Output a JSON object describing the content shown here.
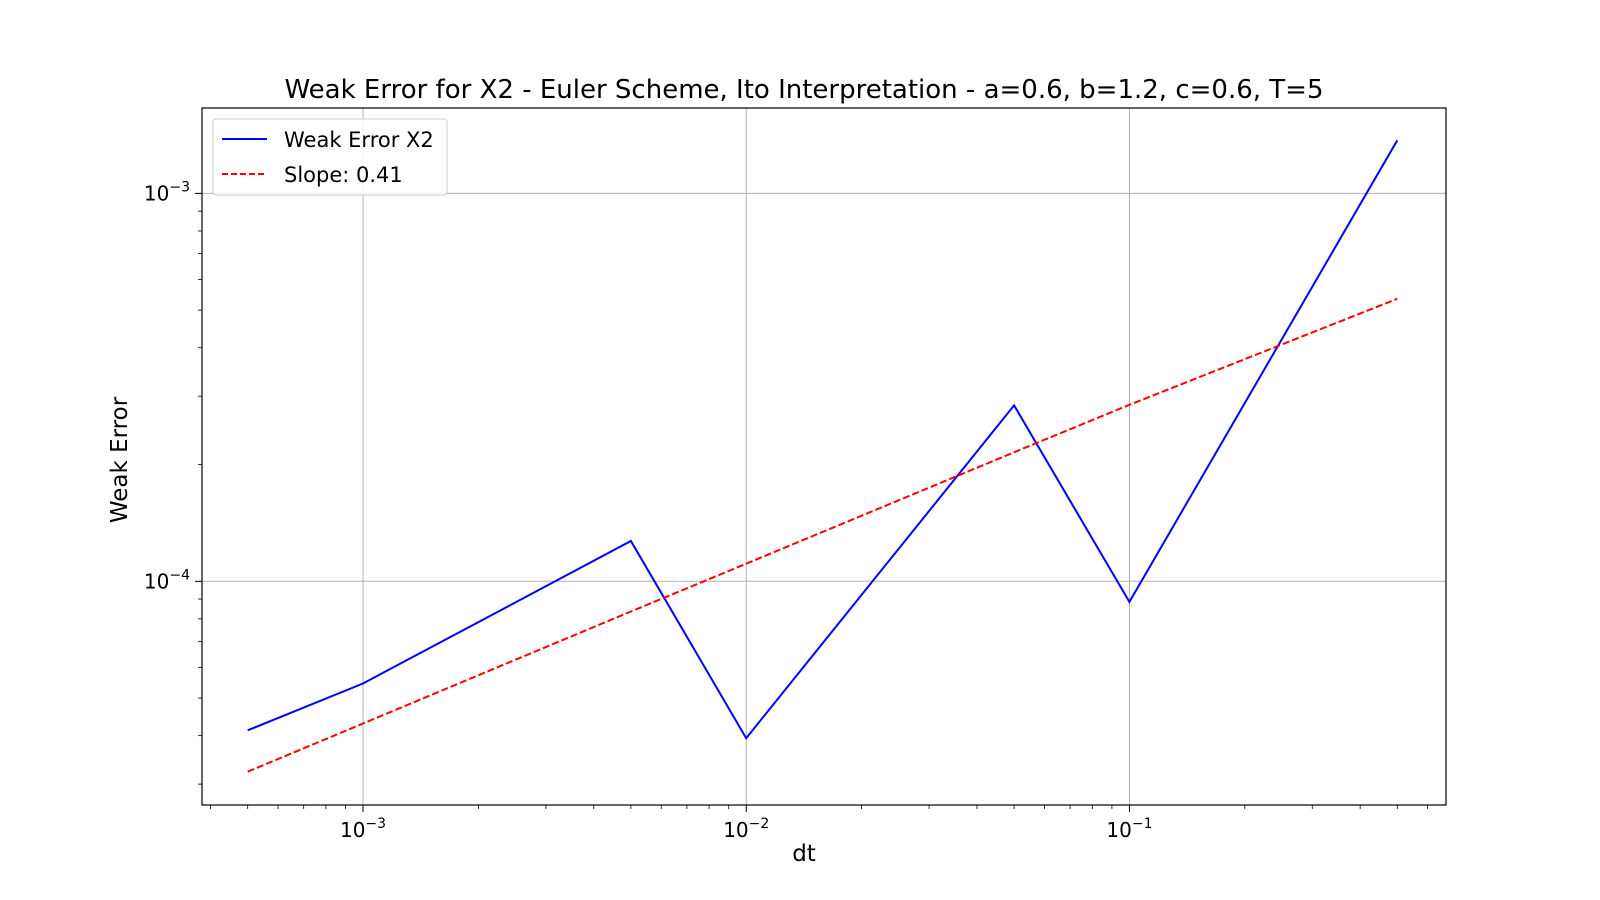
{
  "chart_data": {
    "type": "line",
    "title": "Weak Error for X2 - Euler Scheme, Ito Interpretation - a=0.6, b=1.2, c=0.6, T=5",
    "xlabel": "dt",
    "ylabel": "Weak Error",
    "xscale": "log",
    "yscale": "log",
    "xlim": [
      0.00038,
      0.67
    ],
    "ylim": [
      2.65e-05,
      0.00166
    ],
    "grid": true,
    "legend_position": "top-left",
    "x_ticks": [
      {
        "value": 0.001,
        "base": "10",
        "exp": "−3"
      },
      {
        "value": 0.01,
        "base": "10",
        "exp": "−2"
      },
      {
        "value": 0.1,
        "base": "10",
        "exp": "−1"
      }
    ],
    "y_ticks": [
      {
        "value": 0.0001,
        "base": "10",
        "exp": "−4"
      },
      {
        "value": 0.001,
        "base": "10",
        "exp": "−3"
      }
    ],
    "series": [
      {
        "name": "Weak Error X2",
        "color": "#0000ff",
        "style": "solid",
        "x": [
          0.0005,
          0.001,
          0.005,
          0.01,
          0.05,
          0.1,
          0.5
        ],
        "y": [
          4.13e-05,
          5.45e-05,
          0.000127,
          3.94e-05,
          0.000284,
          8.85e-05,
          0.00137
        ]
      },
      {
        "name": "Slope: 0.41",
        "color": "#ff0000",
        "style": "dashed",
        "x": [
          0.0005,
          0.001,
          0.005,
          0.01,
          0.05,
          0.1,
          0.5
        ],
        "y": [
          3.23e-05,
          4.3e-05,
          8.36e-05,
          0.000111,
          0.000215,
          0.000285,
          0.000535
        ]
      }
    ]
  }
}
